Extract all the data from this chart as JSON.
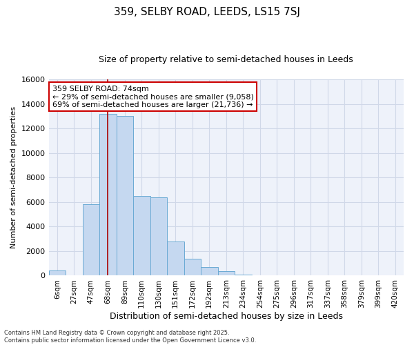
{
  "title_line1": "359, SELBY ROAD, LEEDS, LS15 7SJ",
  "title_line2": "Size of property relative to semi-detached houses in Leeds",
  "xlabel": "Distribution of semi-detached houses by size in Leeds",
  "ylabel": "Number of semi-detached properties",
  "annotation_title": "359 SELBY ROAD: 74sqm",
  "annotation_line2": "← 29% of semi-detached houses are smaller (9,058)",
  "annotation_line3": "69% of semi-detached houses are larger (21,736) →",
  "footer_line1": "Contains HM Land Registry data © Crown copyright and database right 2025.",
  "footer_line2": "Contains public sector information licensed under the Open Government Licence v3.0.",
  "bin_labels": [
    "6sqm",
    "27sqm",
    "47sqm",
    "68sqm",
    "89sqm",
    "110sqm",
    "130sqm",
    "151sqm",
    "172sqm",
    "192sqm",
    "213sqm",
    "234sqm",
    "254sqm",
    "275sqm",
    "296sqm",
    "317sqm",
    "337sqm",
    "358sqm",
    "379sqm",
    "399sqm",
    "420sqm"
  ],
  "bar_values": [
    400,
    0,
    5800,
    13200,
    13000,
    6500,
    6400,
    2800,
    1400,
    700,
    350,
    100,
    50,
    20,
    0,
    0,
    0,
    0,
    0,
    0,
    0
  ],
  "bar_color": "#c5d8f0",
  "bar_edge_color": "#6aaad4",
  "vline_x_index": 3,
  "vline_color": "#aa0000",
  "annotation_box_color": "#cc0000",
  "ylim": [
    0,
    16000
  ],
  "yticks": [
    0,
    2000,
    4000,
    6000,
    8000,
    10000,
    12000,
    14000,
    16000
  ],
  "grid_color": "#d0d8e8",
  "background_color": "#eef2fa"
}
